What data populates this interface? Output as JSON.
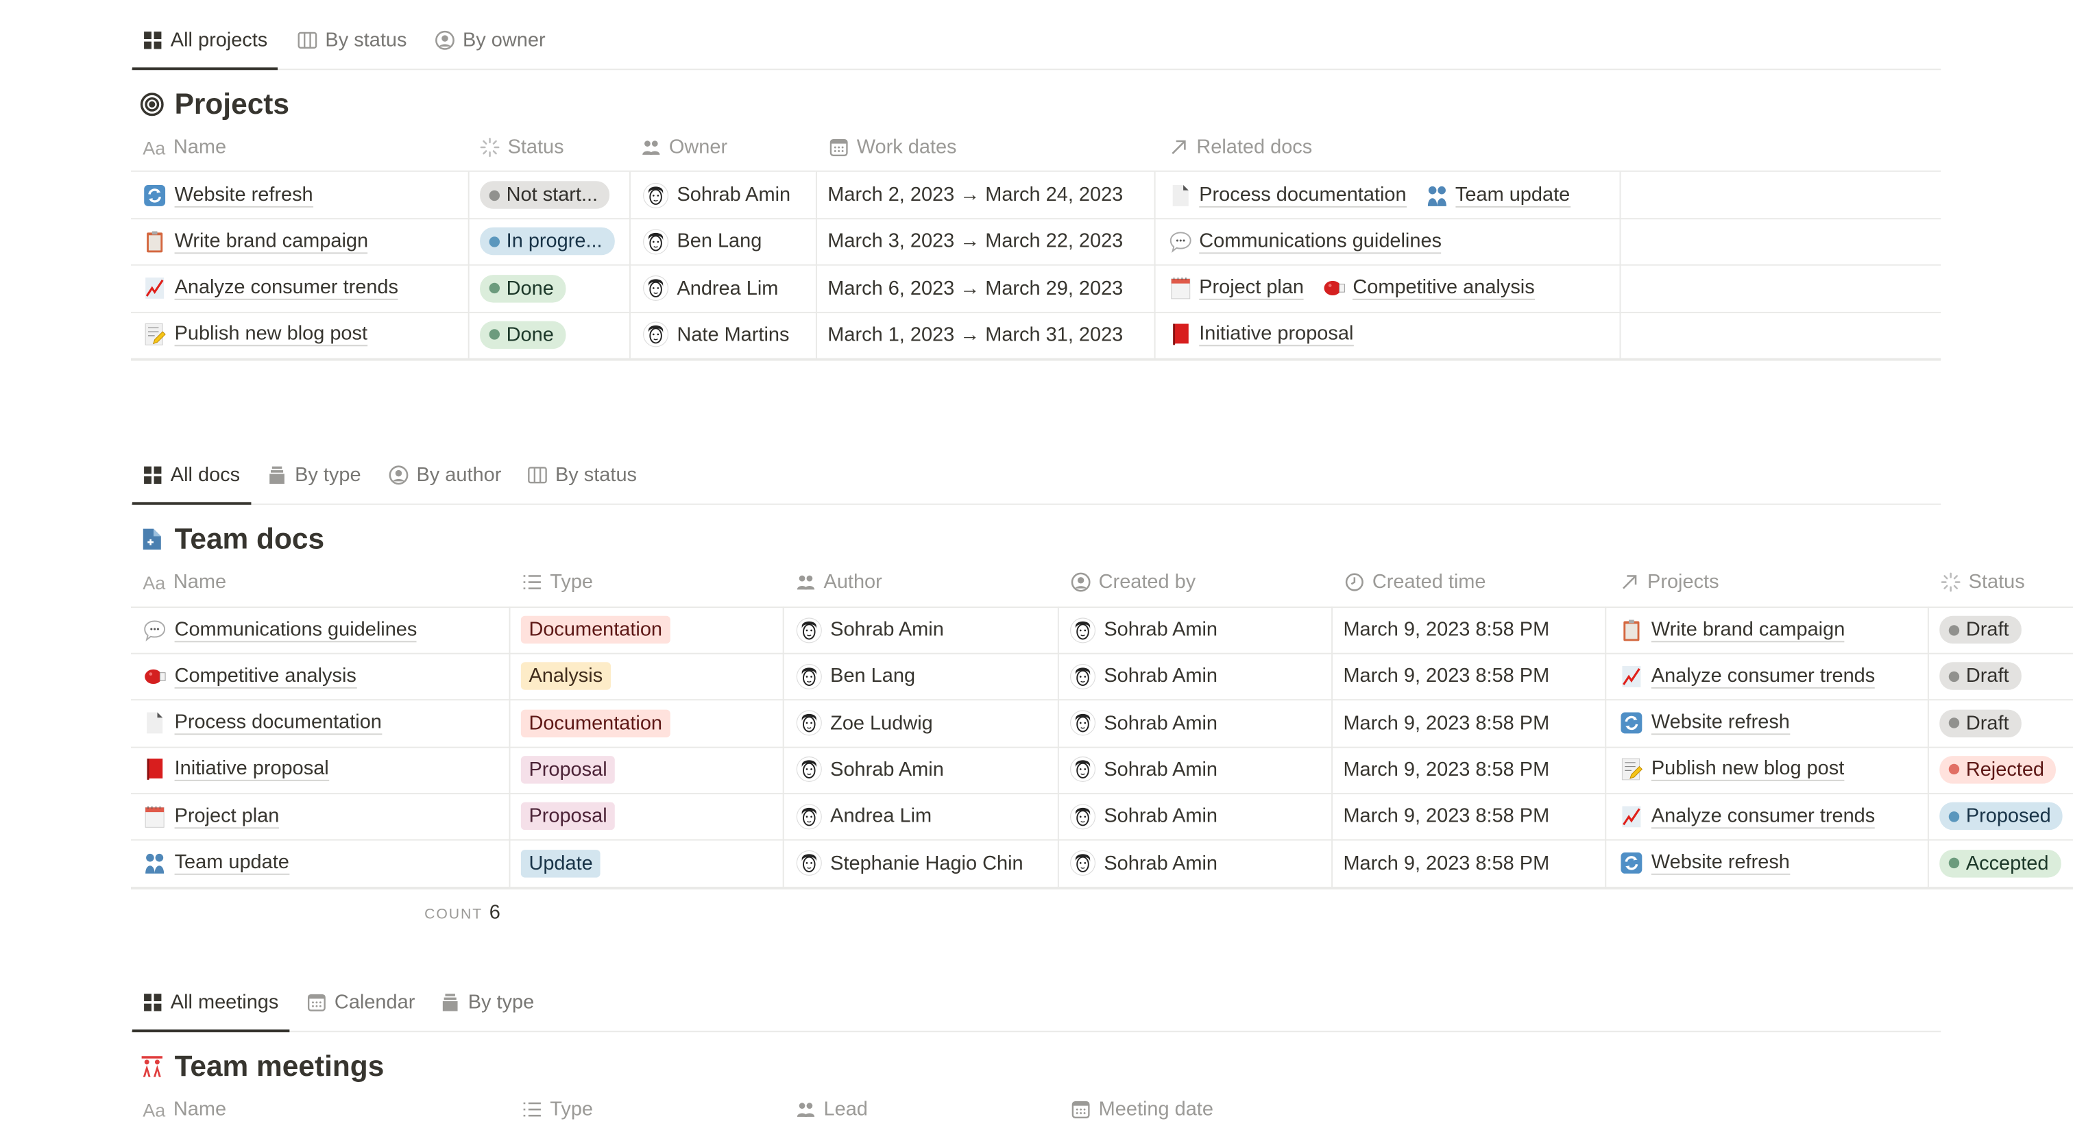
{
  "projects_section": {
    "tabs": [
      {
        "label": "All projects",
        "icon": "grid",
        "active": true
      },
      {
        "label": "By status",
        "icon": "board",
        "active": false
      },
      {
        "label": "By owner",
        "icon": "person-circle",
        "active": false
      }
    ],
    "title": "Projects",
    "title_icon": "target",
    "columns": [
      {
        "label": "Name",
        "icon": "aa"
      },
      {
        "label": "Status",
        "icon": "status"
      },
      {
        "label": "Owner",
        "icon": "people"
      },
      {
        "label": "Work dates",
        "icon": "calendar"
      },
      {
        "label": "Related docs",
        "icon": "relation-arrow"
      }
    ],
    "rows": [
      {
        "icon": "refresh",
        "name": "Website refresh",
        "status": {
          "label": "Not start...",
          "color": "gray"
        },
        "owner": "Sohrab Amin",
        "dates": "March 2, 2023 → March 24, 2023",
        "docs": [
          {
            "icon": "page",
            "label": "Process documentation"
          },
          {
            "icon": "busts",
            "label": "Team update"
          }
        ]
      },
      {
        "icon": "clipboard",
        "name": "Write brand campaign",
        "status": {
          "label": "In progre...",
          "color": "blue"
        },
        "owner": "Ben Lang",
        "dates": "March 3, 2023 → March 22, 2023",
        "docs": [
          {
            "icon": "speech",
            "label": "Communications guidelines"
          }
        ]
      },
      {
        "icon": "chart",
        "name": "Analyze consumer trends",
        "status": {
          "label": "Done",
          "color": "green"
        },
        "owner": "Andrea Lim",
        "dates": "March 6, 2023 → March 29, 2023",
        "docs": [
          {
            "icon": "spiral-calendar",
            "label": "Project plan"
          },
          {
            "icon": "boxing-glove",
            "label": "Competitive analysis"
          }
        ]
      },
      {
        "icon": "memo",
        "name": "Publish new blog post",
        "status": {
          "label": "Done",
          "color": "green"
        },
        "owner": "Nate Martins",
        "dates": "March 1, 2023 → March 31, 2023",
        "docs": [
          {
            "icon": "red-book",
            "label": "Initiative proposal"
          }
        ]
      }
    ]
  },
  "docs_section": {
    "tabs": [
      {
        "label": "All docs",
        "icon": "grid",
        "active": true
      },
      {
        "label": "By type",
        "icon": "stack",
        "active": false
      },
      {
        "label": "By author",
        "icon": "person-circle",
        "active": false
      },
      {
        "label": "By status",
        "icon": "board",
        "active": false
      }
    ],
    "title": "Team docs",
    "title_icon": "doc-plus",
    "columns": [
      {
        "label": "Name",
        "icon": "aa"
      },
      {
        "label": "Type",
        "icon": "list"
      },
      {
        "label": "Author",
        "icon": "people"
      },
      {
        "label": "Created by",
        "icon": "person-circle"
      },
      {
        "label": "Created time",
        "icon": "clock"
      },
      {
        "label": "Projects",
        "icon": "relation-arrow"
      },
      {
        "label": "Status",
        "icon": "status"
      }
    ],
    "rows": [
      {
        "icon": "speech",
        "name": "Communications guidelines",
        "type": {
          "label": "Documentation",
          "color": "red"
        },
        "author": "Sohrab Amin",
        "created_by": "Sohrab Amin",
        "created_time": "March 9, 2023 8:58 PM",
        "project": {
          "icon": "clipboard",
          "label": "Write brand campaign"
        },
        "status": {
          "label": "Draft",
          "color": "gray"
        }
      },
      {
        "icon": "boxing-glove",
        "name": "Competitive analysis",
        "type": {
          "label": "Analysis",
          "color": "yellow"
        },
        "author": "Ben Lang",
        "created_by": "Sohrab Amin",
        "created_time": "March 9, 2023 8:58 PM",
        "project": {
          "icon": "chart",
          "label": "Analyze consumer trends"
        },
        "status": {
          "label": "Draft",
          "color": "gray"
        }
      },
      {
        "icon": "page",
        "name": "Process documentation",
        "type": {
          "label": "Documentation",
          "color": "red"
        },
        "author": "Zoe Ludwig",
        "created_by": "Sohrab Amin",
        "created_time": "March 9, 2023 8:58 PM",
        "project": {
          "icon": "refresh",
          "label": "Website refresh"
        },
        "status": {
          "label": "Draft",
          "color": "gray"
        }
      },
      {
        "icon": "red-book",
        "name": "Initiative proposal",
        "type": {
          "label": "Proposal",
          "color": "pink"
        },
        "author": "Sohrab Amin",
        "created_by": "Sohrab Amin",
        "created_time": "March 9, 2023 8:58 PM",
        "project": {
          "icon": "memo",
          "label": "Publish new blog post"
        },
        "status": {
          "label": "Rejected",
          "color": "red"
        }
      },
      {
        "icon": "spiral-calendar",
        "name": "Project plan",
        "type": {
          "label": "Proposal",
          "color": "pink"
        },
        "author": "Andrea Lim",
        "created_by": "Sohrab Amin",
        "created_time": "March 9, 2023 8:58 PM",
        "project": {
          "icon": "chart",
          "label": "Analyze consumer trends"
        },
        "status": {
          "label": "Proposed",
          "color": "blue"
        }
      },
      {
        "icon": "busts",
        "name": "Team update",
        "type": {
          "label": "Update",
          "color": "blue"
        },
        "author": "Stephanie Hagio Chin",
        "created_by": "Sohrab Amin",
        "created_time": "March 9, 2023 8:58 PM",
        "project": {
          "icon": "refresh",
          "label": "Website refresh"
        },
        "status": {
          "label": "Accepted",
          "color": "green"
        }
      }
    ],
    "count_label": "COUNT",
    "count_value": "6"
  },
  "meetings_section": {
    "tabs": [
      {
        "label": "All meetings",
        "icon": "grid",
        "active": true
      },
      {
        "label": "Calendar",
        "icon": "calendar",
        "active": false
      },
      {
        "label": "By type",
        "icon": "stack",
        "active": false
      }
    ],
    "title": "Team meetings",
    "title_icon": "meeting-people",
    "columns": [
      {
        "label": "Name",
        "icon": "aa"
      },
      {
        "label": "Type",
        "icon": "list"
      },
      {
        "label": "Lead",
        "icon": "people"
      },
      {
        "label": "Meeting date",
        "icon": "calendar"
      }
    ]
  },
  "colors": {
    "text": "#37352f",
    "muted": "#9b9a97",
    "pill": {
      "gray": [
        "#e3e2e0",
        "#91918e",
        "#32302c"
      ],
      "blue": [
        "#d3e5ef",
        "#5b97bd",
        "#183347"
      ],
      "green": [
        "#dbeddb",
        "#6c9b7d",
        "#1c3829"
      ],
      "red": [
        "#ffe2dd",
        "#e16f64",
        "#5d1715"
      ]
    },
    "tag": {
      "red": [
        "#ffe2dd",
        "#5d1715"
      ],
      "yellow": [
        "#fdecc8",
        "#402c1b"
      ],
      "pink": [
        "#f5e0e9",
        "#4c2337"
      ],
      "blue": [
        "#d3e5ef",
        "#183347"
      ]
    }
  }
}
